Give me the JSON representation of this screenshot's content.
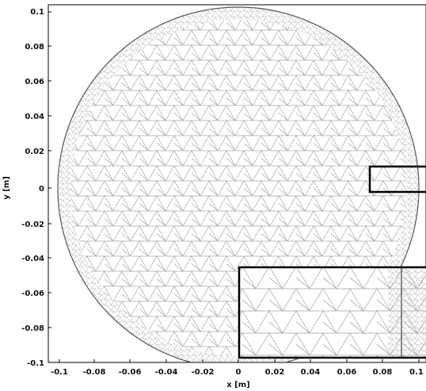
{
  "figure": {
    "xlabel": "x [m]",
    "ylabel": "y [m]",
    "x_ticks": [
      "-0.1",
      "-0.08",
      "-0.06",
      "-0.04",
      "-0.02",
      "0",
      "0.02",
      "0.04",
      "0.06",
      "0.08",
      "0.1"
    ],
    "y_ticks": [
      "0.1",
      "0.08",
      "0.06",
      "0.04",
      "0.02",
      "0",
      "-0.02",
      "-0.04",
      "-0.06",
      "-0.08",
      "-0.1"
    ],
    "x_range": [
      -0.1,
      0.1
    ],
    "y_range": [
      -0.1,
      0.1
    ],
    "domain_shape": "circle",
    "domain_center": [
      0,
      0
    ],
    "domain_radius": 0.1,
    "mesh": "triangular",
    "mesh_color": "#9a9a9a",
    "boundary_color": "#555555",
    "highlight_box": {
      "x": [
        0.07,
        0.1
      ],
      "y": [
        -0.0025,
        0.0105
      ]
    },
    "inset": {
      "x": [
        0.0,
        0.1
      ],
      "y": [
        -0.0985,
        -0.0465
      ],
      "content": "mesh-detail"
    }
  }
}
